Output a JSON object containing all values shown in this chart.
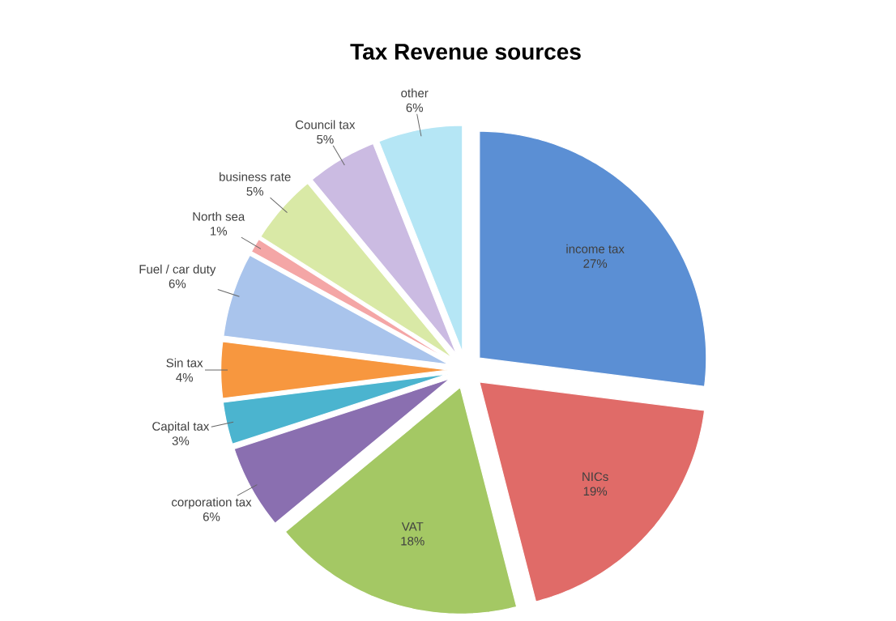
{
  "chart_data": {
    "type": "pie",
    "title": "Tax Revenue sources",
    "categories": [
      "income tax",
      "NICs",
      "VAT",
      "corporation tax",
      "Capital tax",
      "Sin tax",
      "Fuel / car duty",
      "North sea",
      "business rate",
      "Council tax",
      "other"
    ],
    "values": [
      27,
      19,
      18,
      6,
      3,
      4,
      6,
      1,
      5,
      5,
      6
    ],
    "value_labels": [
      "27%",
      "19%",
      "18%",
      "6%",
      "3%",
      "4%",
      "6%",
      "1%",
      "5%",
      "5%",
      "6%"
    ],
    "colors": [
      "#5b8fd4",
      "#e06b68",
      "#a4c864",
      "#8a6fb0",
      "#4bb4cf",
      "#f7973f",
      "#a9c4ec",
      "#f4a6a6",
      "#d9e9a6",
      "#cbbbe2",
      "#b5e6f5"
    ]
  }
}
